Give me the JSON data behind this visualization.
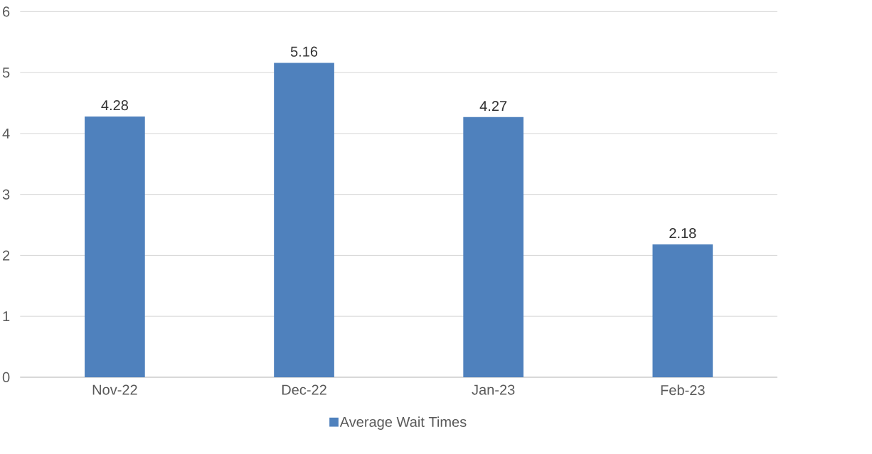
{
  "chart_data": {
    "type": "bar",
    "categories": [
      "Nov-22",
      "Dec-22",
      "Jan-23",
      "Feb-23"
    ],
    "series": [
      {
        "name": "Average Wait Times",
        "color": "#4f81bd",
        "values": [
          4.28,
          5.16,
          4.27,
          2.18
        ]
      }
    ],
    "ylim": [
      0,
      6
    ],
    "yticks": [
      0,
      1,
      2,
      3,
      4,
      5,
      6
    ],
    "grid": "y",
    "data_labels": true,
    "legend": "bottom"
  }
}
